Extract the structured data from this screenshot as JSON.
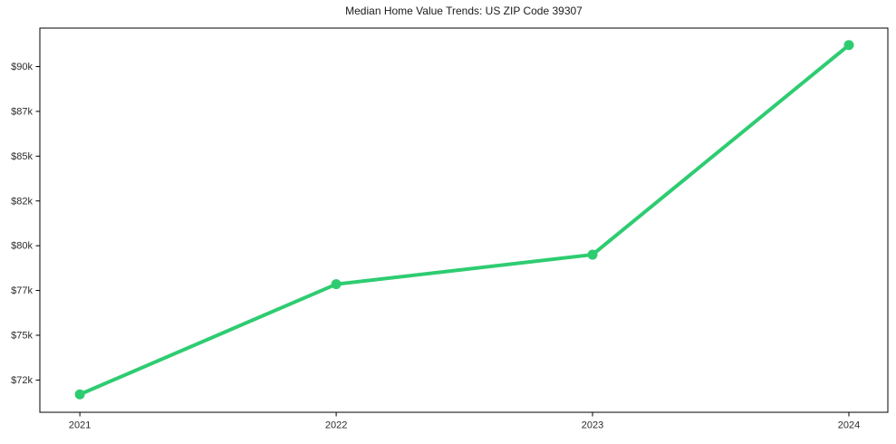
{
  "page": {
    "background_color": "#ffffff"
  },
  "chart_data": {
    "type": "line",
    "title": "Median Home Value Trends: US ZIP Code 39307",
    "x": [
      2021,
      2022,
      2023,
      2024
    ],
    "x_tick_labels": [
      "2021",
      "2022",
      "2023",
      "2024"
    ],
    "values": [
      71700,
      77850,
      79500,
      91200
    ],
    "y_ticks": [
      {
        "value": 72500,
        "label": "$72k"
      },
      {
        "value": 75000,
        "label": "$75k"
      },
      {
        "value": 77500,
        "label": "$77k"
      },
      {
        "value": 80000,
        "label": "$80k"
      },
      {
        "value": 82500,
        "label": "$82k"
      },
      {
        "value": 85000,
        "label": "$85k"
      },
      {
        "value": 87500,
        "label": "$87k"
      },
      {
        "value": 90000,
        "label": "$90k"
      }
    ],
    "xlim": [
      2020.844,
      2024.152
    ],
    "ylim": [
      70700,
      92150
    ],
    "grid": false,
    "legend_position": "none",
    "line_color": "#2ecc71",
    "axis_color": "#000000",
    "tick_label_color": "#2b2b2b",
    "title_color": "#1a1a1a"
  }
}
